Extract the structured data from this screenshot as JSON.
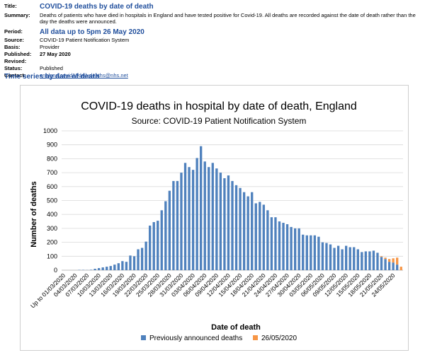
{
  "meta": {
    "title_label": "Title:",
    "title": "COVID-19 deaths by date of death",
    "summary_label": "Summary:",
    "summary": "Deaths of patients who have died in hospitals in England and have tested positive for Covid-19. All deaths are recorded against the date of death rather than the day the deaths were announced.",
    "period_label": "Period:",
    "period": "All data up to 5pm 26 May 2020",
    "source_label": "Source:",
    "source": "COVID-19 Patient Notification System",
    "basis_label": "Basis:",
    "basis": "Provider",
    "published_label": "Published:",
    "published": "27 May 2020",
    "revised_label": "Revised:",
    "revised": "",
    "status_label": "Status:",
    "status": "Published",
    "contact_label": "Contact:",
    "contact": "england.covid19dailydeaths@nhs.net"
  },
  "section_title": "Time series by date of death",
  "chart_data": {
    "type": "bar",
    "title": "COVID-19 deaths in hospital by date of death, England",
    "subtitle": "Source: COVID-19 Patient Notification System",
    "xlabel": "Date of death",
    "ylabel": "Number of deaths",
    "ylim": [
      0,
      1000
    ],
    "yticks": [
      0,
      100,
      200,
      300,
      400,
      500,
      600,
      700,
      800,
      900,
      1000
    ],
    "grid": true,
    "legend_position": "bottom",
    "categories": [
      "Up to 01/03/2020",
      "02/03/2020",
      "03/03/2020",
      "04/03/2020",
      "05/03/2020",
      "06/03/2020",
      "07/03/2020",
      "08/03/2020",
      "09/03/2020",
      "10/03/2020",
      "11/03/2020",
      "12/03/2020",
      "13/03/2020",
      "14/03/2020",
      "15/03/2020",
      "16/03/2020",
      "17/03/2020",
      "18/03/2020",
      "19/03/2020",
      "20/03/2020",
      "21/03/2020",
      "22/03/2020",
      "23/03/2020",
      "24/03/2020",
      "25/03/2020",
      "26/03/2020",
      "27/03/2020",
      "28/03/2020",
      "29/03/2020",
      "30/03/2020",
      "31/03/2020",
      "01/04/2020",
      "02/04/2020",
      "03/04/2020",
      "04/04/2020",
      "05/04/2020",
      "06/04/2020",
      "07/04/2020",
      "08/04/2020",
      "09/04/2020",
      "10/04/2020",
      "11/04/2020",
      "12/04/2020",
      "13/04/2020",
      "14/04/2020",
      "15/04/2020",
      "16/04/2020",
      "17/04/2020",
      "18/04/2020",
      "19/04/2020",
      "20/04/2020",
      "21/04/2020",
      "22/04/2020",
      "23/04/2020",
      "24/04/2020",
      "25/04/2020",
      "26/04/2020",
      "27/04/2020",
      "28/04/2020",
      "29/04/2020",
      "30/04/2020",
      "01/05/2020",
      "02/05/2020",
      "03/05/2020",
      "04/05/2020",
      "05/05/2020",
      "06/05/2020",
      "07/05/2020",
      "08/05/2020",
      "09/05/2020",
      "10/05/2020",
      "11/05/2020",
      "12/05/2020",
      "13/05/2020",
      "14/05/2020",
      "15/05/2020",
      "16/05/2020",
      "17/05/2020",
      "18/05/2020",
      "19/05/2020",
      "20/05/2020",
      "21/05/2020",
      "22/05/2020",
      "23/05/2020",
      "24/05/2020",
      "25/05/2020",
      "26/05/2020"
    ],
    "tick_labels": [
      "Up to 01/03/2020",
      "04/03/2020",
      "07/03/2020",
      "10/03/2020",
      "13/03/2020",
      "16/03/2020",
      "19/03/2020",
      "22/03/2020",
      "25/03/2020",
      "28/03/2020",
      "31/03/2020",
      "03/04/2020",
      "06/04/2020",
      "09/04/2020",
      "12/04/2020",
      "15/04/2020",
      "18/04/2020",
      "21/04/2020",
      "24/04/2020",
      "27/04/2020",
      "30/04/2020",
      "03/05/2020",
      "06/05/2020",
      "09/05/2020",
      "12/05/2020",
      "15/05/2020",
      "18/05/2020",
      "21/05/2020",
      "24/05/2020"
    ],
    "series": [
      {
        "name": "Previously announced deaths",
        "color": "#4f81bd",
        "values": [
          0,
          0,
          0,
          0,
          2,
          2,
          1,
          3,
          10,
          15,
          20,
          25,
          30,
          40,
          50,
          65,
          60,
          105,
          100,
          150,
          160,
          205,
          320,
          345,
          355,
          430,
          495,
          570,
          640,
          640,
          700,
          770,
          740,
          720,
          805,
          890,
          780,
          740,
          770,
          730,
          700,
          660,
          680,
          640,
          610,
          590,
          560,
          530,
          560,
          480,
          490,
          470,
          430,
          380,
          380,
          350,
          340,
          330,
          310,
          300,
          300,
          255,
          250,
          250,
          250,
          240,
          200,
          195,
          185,
          160,
          175,
          150,
          175,
          165,
          165,
          150,
          130,
          135,
          135,
          140,
          125,
          95,
          80,
          60,
          55,
          40,
          0
        ]
      },
      {
        "name": "26/05/2020",
        "color": "#f79646",
        "values": [
          0,
          0,
          0,
          0,
          0,
          0,
          0,
          0,
          0,
          0,
          0,
          0,
          0,
          0,
          0,
          0,
          0,
          0,
          0,
          0,
          0,
          0,
          0,
          0,
          0,
          0,
          0,
          0,
          0,
          0,
          0,
          0,
          0,
          0,
          0,
          0,
          0,
          0,
          0,
          0,
          0,
          0,
          0,
          0,
          0,
          0,
          0,
          0,
          0,
          0,
          0,
          0,
          0,
          0,
          0,
          0,
          0,
          0,
          0,
          0,
          0,
          0,
          0,
          0,
          0,
          0,
          0,
          0,
          0,
          0,
          0,
          0,
          0,
          0,
          0,
          0,
          0,
          0,
          0,
          0,
          0,
          5,
          10,
          20,
          30,
          50,
          25
        ]
      }
    ]
  }
}
